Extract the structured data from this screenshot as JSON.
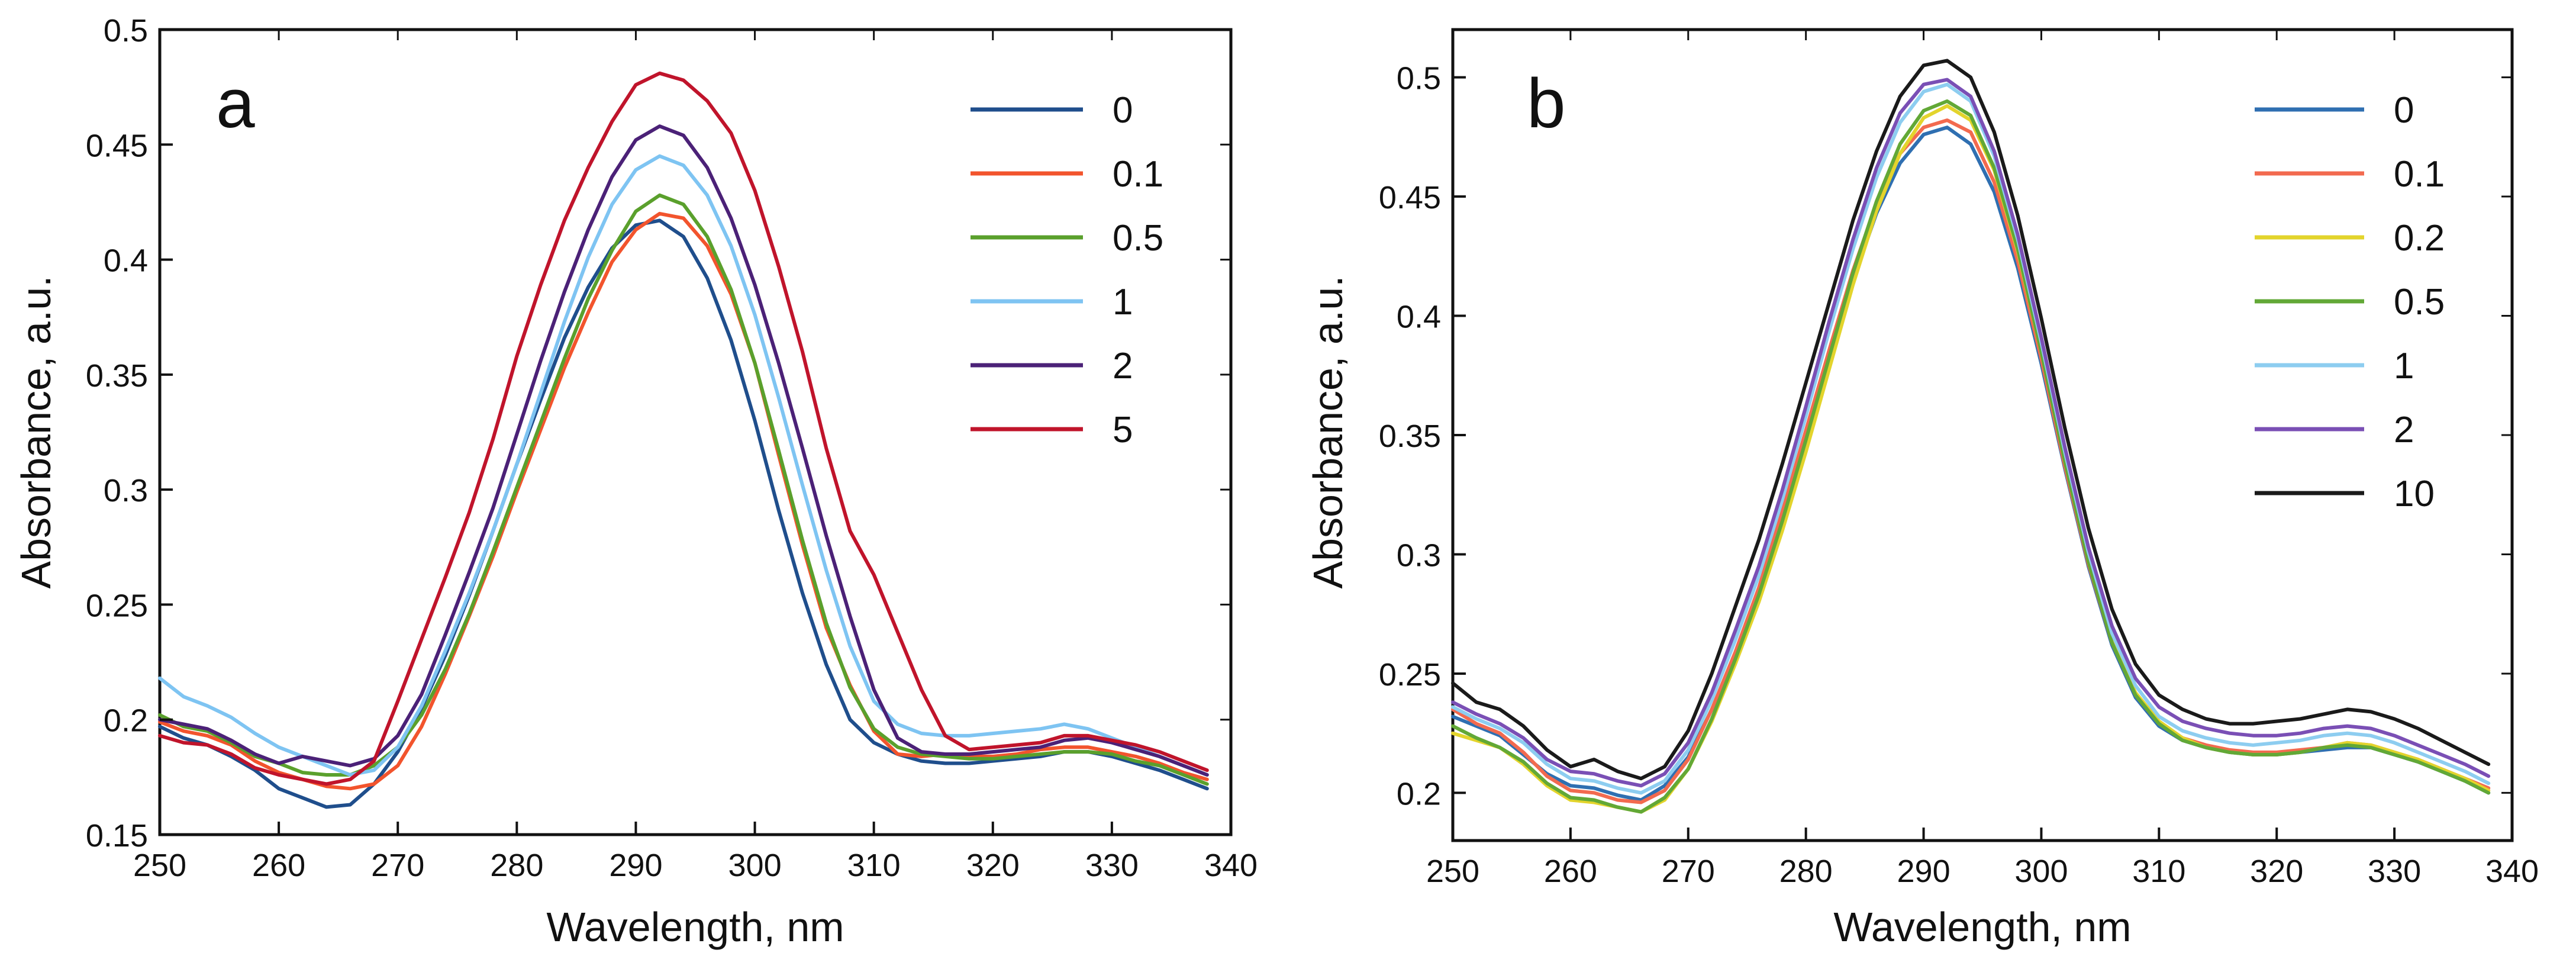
{
  "chart_data": [
    {
      "type": "line",
      "panel_label": "a",
      "xlabel": "Wavelength, nm",
      "ylabel": "Absorbance, a.u.",
      "xlim": [
        250,
        340
      ],
      "ylim": [
        0.15,
        0.5
      ],
      "xticks": [
        250,
        260,
        270,
        280,
        290,
        300,
        310,
        320,
        330,
        340
      ],
      "yticks": [
        0.15,
        0.2,
        0.25,
        0.3,
        0.35,
        0.4,
        0.45,
        0.5
      ],
      "ytick_labels": [
        "0.15",
        "0.2",
        "0.25",
        "0.3",
        "0.35",
        "0.4",
        "0.45",
        "0.5"
      ],
      "legend_position": "top-right",
      "x": [
        250,
        252,
        254,
        256,
        258,
        260,
        262,
        264,
        266,
        268,
        270,
        272,
        274,
        276,
        278,
        280,
        282,
        284,
        286,
        288,
        290,
        292,
        294,
        296,
        298,
        300,
        302,
        304,
        306,
        308,
        310,
        312,
        314,
        316,
        318,
        320,
        322,
        324,
        326,
        328,
        330,
        332,
        334,
        336,
        338
      ],
      "series": [
        {
          "name": "0",
          "color": "#1f4e8c",
          "values": [
            0.197,
            0.192,
            0.189,
            0.184,
            0.178,
            0.17,
            0.166,
            0.162,
            0.163,
            0.172,
            0.186,
            0.205,
            0.228,
            0.254,
            0.282,
            0.311,
            0.339,
            0.366,
            0.388,
            0.405,
            0.415,
            0.417,
            0.41,
            0.392,
            0.365,
            0.33,
            0.291,
            0.255,
            0.224,
            0.2,
            0.19,
            0.185,
            0.182,
            0.181,
            0.181,
            0.182,
            0.183,
            0.184,
            0.186,
            0.186,
            0.184,
            0.181,
            0.178,
            0.174,
            0.17
          ]
        },
        {
          "name": "0.1",
          "color": "#f2542d",
          "values": [
            0.199,
            0.195,
            0.193,
            0.189,
            0.182,
            0.177,
            0.174,
            0.171,
            0.17,
            0.172,
            0.18,
            0.197,
            0.22,
            0.245,
            0.271,
            0.299,
            0.326,
            0.353,
            0.377,
            0.399,
            0.413,
            0.42,
            0.418,
            0.406,
            0.385,
            0.355,
            0.315,
            0.276,
            0.24,
            0.215,
            0.195,
            0.185,
            0.184,
            0.185,
            0.184,
            0.184,
            0.185,
            0.187,
            0.188,
            0.188,
            0.186,
            0.184,
            0.181,
            0.177,
            0.174
          ]
        },
        {
          "name": "0.5",
          "color": "#5aa02c",
          "values": [
            0.202,
            0.197,
            0.195,
            0.19,
            0.184,
            0.181,
            0.177,
            0.176,
            0.176,
            0.18,
            0.188,
            0.202,
            0.222,
            0.246,
            0.273,
            0.301,
            0.329,
            0.357,
            0.383,
            0.404,
            0.421,
            0.428,
            0.424,
            0.41,
            0.387,
            0.355,
            0.317,
            0.278,
            0.242,
            0.214,
            0.196,
            0.188,
            0.185,
            0.184,
            0.183,
            0.183,
            0.184,
            0.185,
            0.186,
            0.186,
            0.185,
            0.182,
            0.18,
            0.176,
            0.172
          ]
        },
        {
          "name": "1",
          "color": "#7ec4f2",
          "values": [
            0.218,
            0.21,
            0.206,
            0.201,
            0.194,
            0.188,
            0.184,
            0.18,
            0.176,
            0.178,
            0.188,
            0.206,
            0.23,
            0.255,
            0.282,
            0.311,
            0.342,
            0.373,
            0.401,
            0.424,
            0.439,
            0.445,
            0.441,
            0.428,
            0.406,
            0.376,
            0.34,
            0.302,
            0.265,
            0.232,
            0.208,
            0.198,
            0.194,
            0.193,
            0.193,
            0.194,
            0.195,
            0.196,
            0.198,
            0.196,
            0.192,
            0.188,
            0.184,
            0.18,
            0.176
          ]
        },
        {
          "name": "2",
          "color": "#4b2177",
          "values": [
            0.2,
            0.198,
            0.196,
            0.191,
            0.185,
            0.181,
            0.184,
            0.182,
            0.18,
            0.183,
            0.193,
            0.211,
            0.237,
            0.264,
            0.292,
            0.324,
            0.356,
            0.386,
            0.413,
            0.436,
            0.452,
            0.458,
            0.454,
            0.44,
            0.418,
            0.389,
            0.355,
            0.318,
            0.28,
            0.245,
            0.213,
            0.192,
            0.186,
            0.185,
            0.185,
            0.186,
            0.187,
            0.188,
            0.191,
            0.192,
            0.19,
            0.187,
            0.184,
            0.18,
            0.176
          ]
        },
        {
          "name": "5",
          "color": "#c0142b",
          "values": [
            0.193,
            0.19,
            0.189,
            0.185,
            0.179,
            0.176,
            0.174,
            0.172,
            0.174,
            0.182,
            0.208,
            0.235,
            0.262,
            0.29,
            0.322,
            0.358,
            0.389,
            0.417,
            0.44,
            0.46,
            0.476,
            0.481,
            0.478,
            0.469,
            0.455,
            0.43,
            0.397,
            0.36,
            0.318,
            0.282,
            0.263,
            0.238,
            0.213,
            0.193,
            0.187,
            0.188,
            0.189,
            0.19,
            0.193,
            0.193,
            0.191,
            0.189,
            0.186,
            0.182,
            0.178
          ]
        }
      ]
    },
    {
      "type": "line",
      "panel_label": "b",
      "xlabel": "Wavelength, nm",
      "ylabel": "Absorbance, a.u.",
      "xlim": [
        250,
        340
      ],
      "ylim": [
        0.18,
        0.52
      ],
      "xticks": [
        250,
        260,
        270,
        280,
        290,
        300,
        310,
        320,
        330,
        340
      ],
      "yticks": [
        0.2,
        0.25,
        0.3,
        0.35,
        0.4,
        0.45,
        0.5
      ],
      "ytick_labels": [
        "0.2",
        "0.25",
        "0.3",
        "0.35",
        "0.4",
        "0.45",
        "0.5"
      ],
      "legend_position": "top-right",
      "x": [
        250,
        252,
        254,
        256,
        258,
        260,
        262,
        264,
        266,
        268,
        270,
        272,
        274,
        276,
        278,
        280,
        282,
        284,
        286,
        288,
        290,
        292,
        294,
        296,
        298,
        300,
        302,
        304,
        306,
        308,
        310,
        312,
        314,
        316,
        318,
        320,
        322,
        324,
        326,
        328,
        330,
        332,
        334,
        336,
        338
      ],
      "series": [
        {
          "name": "0",
          "color": "#2f6fb1",
          "values": [
            0.232,
            0.228,
            0.224,
            0.216,
            0.208,
            0.203,
            0.202,
            0.199,
            0.197,
            0.203,
            0.215,
            0.235,
            0.258,
            0.284,
            0.314,
            0.347,
            0.381,
            0.415,
            0.443,
            0.464,
            0.476,
            0.479,
            0.472,
            0.452,
            0.42,
            0.38,
            0.336,
            0.295,
            0.262,
            0.24,
            0.228,
            0.222,
            0.219,
            0.217,
            0.216,
            0.216,
            0.217,
            0.218,
            0.219,
            0.219,
            0.216,
            0.213,
            0.209,
            0.205,
            0.2
          ]
        },
        {
          "name": "0.1",
          "color": "#f26a4f",
          "values": [
            0.235,
            0.229,
            0.225,
            0.217,
            0.207,
            0.201,
            0.2,
            0.197,
            0.196,
            0.201,
            0.214,
            0.235,
            0.259,
            0.286,
            0.318,
            0.352,
            0.386,
            0.419,
            0.447,
            0.468,
            0.479,
            0.482,
            0.477,
            0.456,
            0.423,
            0.382,
            0.337,
            0.296,
            0.263,
            0.241,
            0.229,
            0.223,
            0.22,
            0.218,
            0.217,
            0.217,
            0.218,
            0.219,
            0.221,
            0.22,
            0.217,
            0.214,
            0.21,
            0.206,
            0.202
          ]
        },
        {
          "name": "0.2",
          "color": "#e3d42c",
          "values": [
            0.225,
            0.222,
            0.219,
            0.212,
            0.203,
            0.197,
            0.196,
            0.194,
            0.192,
            0.197,
            0.21,
            0.23,
            0.254,
            0.28,
            0.31,
            0.343,
            0.378,
            0.413,
            0.444,
            0.468,
            0.483,
            0.488,
            0.482,
            0.461,
            0.427,
            0.385,
            0.34,
            0.298,
            0.264,
            0.242,
            0.23,
            0.223,
            0.219,
            0.217,
            0.216,
            0.216,
            0.217,
            0.219,
            0.221,
            0.22,
            0.217,
            0.214,
            0.21,
            0.206,
            0.201
          ]
        },
        {
          "name": "0.5",
          "color": "#62a836",
          "values": [
            0.228,
            0.223,
            0.219,
            0.213,
            0.204,
            0.198,
            0.197,
            0.194,
            0.192,
            0.198,
            0.21,
            0.231,
            0.256,
            0.283,
            0.314,
            0.348,
            0.383,
            0.418,
            0.448,
            0.472,
            0.486,
            0.49,
            0.484,
            0.462,
            0.428,
            0.385,
            0.339,
            0.297,
            0.263,
            0.241,
            0.229,
            0.222,
            0.219,
            0.217,
            0.216,
            0.216,
            0.217,
            0.219,
            0.22,
            0.219,
            0.216,
            0.213,
            0.209,
            0.205,
            0.2
          ]
        },
        {
          "name": "1",
          "color": "#8dcdf0",
          "values": [
            0.236,
            0.231,
            0.227,
            0.221,
            0.212,
            0.206,
            0.205,
            0.202,
            0.2,
            0.205,
            0.218,
            0.239,
            0.264,
            0.291,
            0.323,
            0.358,
            0.394,
            0.428,
            0.458,
            0.481,
            0.494,
            0.497,
            0.49,
            0.467,
            0.432,
            0.389,
            0.343,
            0.301,
            0.267,
            0.245,
            0.232,
            0.226,
            0.223,
            0.221,
            0.22,
            0.221,
            0.222,
            0.224,
            0.225,
            0.224,
            0.221,
            0.217,
            0.213,
            0.209,
            0.204
          ]
        },
        {
          "name": "2",
          "color": "#7a4fb5",
          "values": [
            0.238,
            0.233,
            0.229,
            0.223,
            0.214,
            0.209,
            0.208,
            0.205,
            0.203,
            0.208,
            0.221,
            0.242,
            0.268,
            0.295,
            0.327,
            0.362,
            0.398,
            0.432,
            0.462,
            0.485,
            0.497,
            0.499,
            0.492,
            0.469,
            0.434,
            0.391,
            0.345,
            0.303,
            0.27,
            0.248,
            0.236,
            0.23,
            0.227,
            0.225,
            0.224,
            0.224,
            0.225,
            0.227,
            0.228,
            0.227,
            0.224,
            0.22,
            0.216,
            0.212,
            0.207
          ]
        },
        {
          "name": "10",
          "color": "#1a1a1a",
          "values": [
            0.246,
            0.238,
            0.235,
            0.228,
            0.218,
            0.211,
            0.214,
            0.209,
            0.206,
            0.211,
            0.226,
            0.25,
            0.278,
            0.306,
            0.338,
            0.372,
            0.406,
            0.44,
            0.469,
            0.492,
            0.505,
            0.507,
            0.5,
            0.477,
            0.442,
            0.399,
            0.353,
            0.311,
            0.277,
            0.254,
            0.241,
            0.235,
            0.231,
            0.229,
            0.229,
            0.23,
            0.231,
            0.233,
            0.235,
            0.234,
            0.231,
            0.227,
            0.222,
            0.217,
            0.212
          ]
        }
      ]
    }
  ]
}
